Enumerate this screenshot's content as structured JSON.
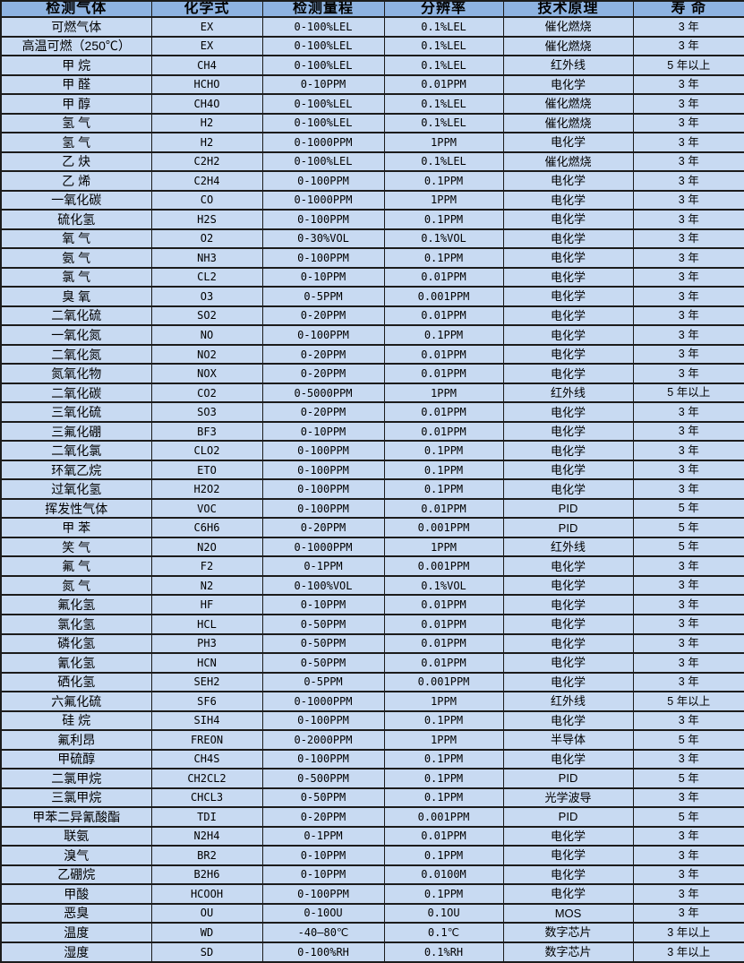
{
  "colors": {
    "header_bg": "#8eb3e1",
    "row_bg": "#c8daf2",
    "border": "#1c1c1c",
    "text": "#000000"
  },
  "chart_data": {
    "type": "table",
    "title": "",
    "columns": [
      "检测气体",
      "化学式",
      "检测量程",
      "分辨率",
      "技术原理",
      "寿 命"
    ],
    "rows": [
      [
        "可燃气体",
        "EX",
        "0-100%LEL",
        "0.1%LEL",
        "催化燃烧",
        "3 年"
      ],
      [
        "高温可燃（250℃）",
        "EX",
        "0-100%LEL",
        "0.1%LEL",
        "催化燃烧",
        "3 年"
      ],
      [
        "甲 烷",
        "CH4",
        "0-100%LEL",
        "0.1%LEL",
        "红外线",
        "5 年以上"
      ],
      [
        "甲 醛",
        "HCHO",
        "0-10PPM",
        "0.01PPM",
        "电化学",
        "3 年"
      ],
      [
        "甲 醇",
        "CH4O",
        "0-100%LEL",
        "0.1%LEL",
        "催化燃烧",
        "3 年"
      ],
      [
        "氢 气",
        "H2",
        "0-100%LEL",
        "0.1%LEL",
        "催化燃烧",
        "3 年"
      ],
      [
        "氢 气",
        "H2",
        "0-1000PPM",
        "1PPM",
        "电化学",
        "3 年"
      ],
      [
        "乙 炔",
        "C2H2",
        "0-100%LEL",
        "0.1%LEL",
        "催化燃烧",
        "3 年"
      ],
      [
        "乙 烯",
        "C2H4",
        "0-100PPM",
        "0.1PPM",
        "电化学",
        "3 年"
      ],
      [
        "一氧化碳",
        "CO",
        "0-1000PPM",
        "1PPM",
        "电化学",
        "3 年"
      ],
      [
        "硫化氢",
        "H2S",
        "0-100PPM",
        "0.1PPM",
        "电化学",
        "3 年"
      ],
      [
        "氧 气",
        "O2",
        "0-30%VOL",
        "0.1%VOL",
        "电化学",
        "3 年"
      ],
      [
        "氨 气",
        "NH3",
        "0-100PPM",
        "0.1PPM",
        "电化学",
        "3 年"
      ],
      [
        "氯 气",
        "CL2",
        "0-10PPM",
        "0.01PPM",
        "电化学",
        "3 年"
      ],
      [
        "臭 氧",
        "O3",
        "0-5PPM",
        "0.001PPM",
        "电化学",
        "3 年"
      ],
      [
        "二氧化硫",
        "SO2",
        "0-20PPM",
        "0.01PPM",
        "电化学",
        "3 年"
      ],
      [
        "一氧化氮",
        "NO",
        "0-100PPM",
        "0.1PPM",
        "电化学",
        "3 年"
      ],
      [
        "二氧化氮",
        "NO2",
        "0-20PPM",
        "0.01PPM",
        "电化学",
        "3 年"
      ],
      [
        "氮氧化物",
        "NOX",
        "0-20PPM",
        "0.01PPM",
        "电化学",
        "3 年"
      ],
      [
        "二氧化碳",
        "CO2",
        "0-5000PPM",
        "1PPM",
        "红外线",
        "5 年以上"
      ],
      [
        "三氧化硫",
        "SO3",
        "0-20PPM",
        "0.01PPM",
        "电化学",
        "3 年"
      ],
      [
        "三氟化硼",
        "BF3",
        "0-10PPM",
        "0.01PPM",
        "电化学",
        "3 年"
      ],
      [
        "二氧化氯",
        "CLO2",
        "0-100PPM",
        "0.1PPM",
        "电化学",
        "3 年"
      ],
      [
        "环氧乙烷",
        "ETO",
        "0-100PPM",
        "0.1PPM",
        "电化学",
        "3 年"
      ],
      [
        "过氧化氢",
        "H2O2",
        "0-100PPM",
        "0.1PPM",
        "电化学",
        "3 年"
      ],
      [
        "挥发性气体",
        "VOC",
        "0-100PPM",
        "0.01PPM",
        "PID",
        "5 年"
      ],
      [
        "甲 苯",
        "C6H6",
        "0-20PPM",
        "0.001PPM",
        "PID",
        "5 年"
      ],
      [
        "笑 气",
        "N2O",
        "0-1000PPM",
        "1PPM",
        "红外线",
        "5 年"
      ],
      [
        "氟 气",
        "F2",
        "0-1PPM",
        "0.001PPM",
        "电化学",
        "3 年"
      ],
      [
        "氮 气",
        "N2",
        "0-100%VOL",
        "0.1%VOL",
        "电化学",
        "3 年"
      ],
      [
        "氟化氢",
        "HF",
        "0-10PPM",
        "0.01PPM",
        "电化学",
        "3 年"
      ],
      [
        "氯化氢",
        "HCL",
        "0-50PPM",
        "0.01PPM",
        "电化学",
        "3 年"
      ],
      [
        "磷化氢",
        "PH3",
        "0-50PPM",
        "0.01PPM",
        "电化学",
        "3 年"
      ],
      [
        "氰化氢",
        "HCN",
        "0-50PPM",
        "0.01PPM",
        "电化学",
        "3 年"
      ],
      [
        "硒化氢",
        "SEH2",
        "0-5PPM",
        "0.001PPM",
        "电化学",
        "3 年"
      ],
      [
        "六氟化硫",
        "SF6",
        "0-1000PPM",
        "1PPM",
        "红外线",
        "5 年以上"
      ],
      [
        "硅 烷",
        "SIH4",
        "0-100PPM",
        "0.1PPM",
        "电化学",
        "3 年"
      ],
      [
        "氟利昂",
        "FREON",
        "0-2000PPM",
        "1PPM",
        "半导体",
        "5 年"
      ],
      [
        "甲硫醇",
        "CH4S",
        "0-100PPM",
        "0.1PPM",
        "电化学",
        "3 年"
      ],
      [
        "二氯甲烷",
        "CH2CL2",
        "0-500PPM",
        "0.1PPM",
        "PID",
        "5 年"
      ],
      [
        "三氯甲烷",
        "CHCL3",
        "0-50PPM",
        "0.1PPM",
        "光学波导",
        "3 年"
      ],
      [
        "甲苯二异氰酸酯",
        "TDI",
        "0-20PPM",
        "0.001PPM",
        "PID",
        "5 年"
      ],
      [
        "联氨",
        "N2H4",
        "0-1PPM",
        "0.01PPM",
        "电化学",
        "3 年"
      ],
      [
        "溴气",
        "BR2",
        "0-10PPM",
        "0.1PPM",
        "电化学",
        "3 年"
      ],
      [
        "乙硼烷",
        "B2H6",
        "0-10PPM",
        "0.0100M",
        "电化学",
        "3 年"
      ],
      [
        "甲酸",
        "HCOOH",
        "0-100PPM",
        "0.1PPM",
        "电化学",
        "3 年"
      ],
      [
        "恶臭",
        "OU",
        "0-10OU",
        "0.1OU",
        "MOS",
        "3 年"
      ],
      [
        "温度",
        "WD",
        "-40—80℃",
        "0.1℃",
        "数字芯片",
        "3 年以上"
      ],
      [
        "湿度",
        "SD",
        "0-100%RH",
        "0.1%RH",
        "数字芯片",
        "3 年以上"
      ]
    ]
  }
}
